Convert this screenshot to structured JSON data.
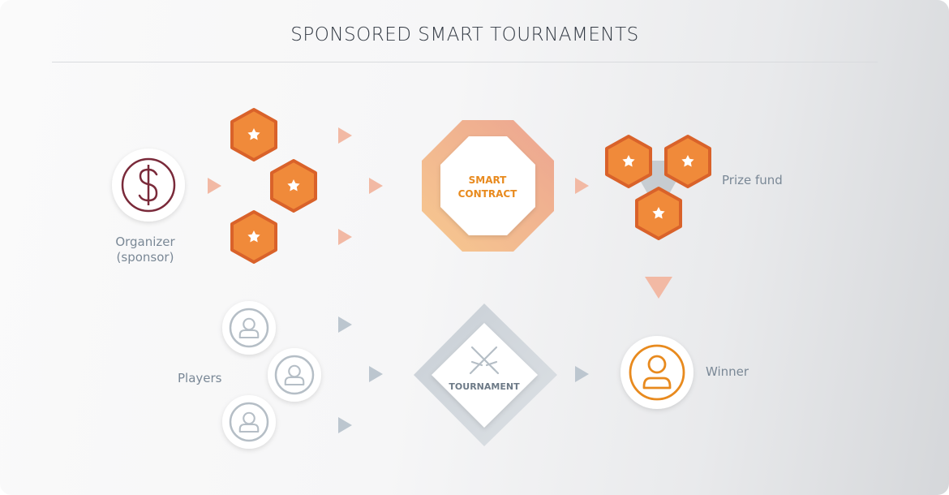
{
  "title": "SPONSORED SMART TOURNAMENTS",
  "nodes": {
    "organizer": {
      "label_line1": "Organizer",
      "label_line2": "(sponsor)"
    },
    "smart_contract": {
      "line1": "SMART",
      "line2": "CONTRACT"
    },
    "prize_fund": {
      "label": "Prize fund"
    },
    "players": {
      "label": "Players"
    },
    "tournament": {
      "label": "TOURNAMENT"
    },
    "winner": {
      "label": "Winner"
    }
  },
  "colors": {
    "title": "#333a44",
    "label": "#7a8896",
    "token_orange": "#f08a3a",
    "token_border": "#d9622a",
    "arrow_peach": "#f2b9a4",
    "arrow_gray": "#bcc6cf",
    "organizer_icon": "#7a2a3a",
    "winner_icon": "#e88a1e",
    "player_icon": "#b5bec6",
    "contract_text": "#e88a1e"
  },
  "icons": {
    "organizer": "dollar-icon",
    "token": "star-icon",
    "player": "user-icon",
    "tournament": "crossed-swords-icon",
    "winner": "user-icon"
  }
}
